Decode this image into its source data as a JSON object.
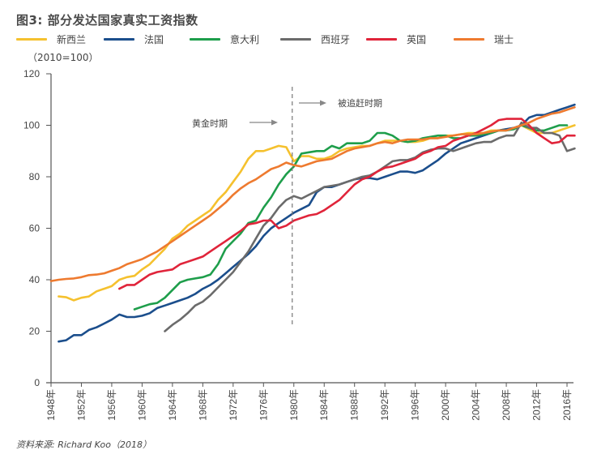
{
  "chart_data": {
    "type": "line",
    "title": "图3: 部分发达国家真实工资指数",
    "unit_label": "（2010=100）",
    "source": "资料来源: Richard Koo（2018）",
    "xlabel": "",
    "ylabel": "",
    "xlim": [
      1948,
      2017
    ],
    "ylim": [
      0,
      120
    ],
    "yticks": [
      0,
      20,
      40,
      60,
      80,
      100,
      120
    ],
    "ytick_labels": [
      "0",
      "20",
      "40",
      "60",
      "80",
      "100",
      "120"
    ],
    "xticks": [
      1948,
      1952,
      1956,
      1960,
      1964,
      1968,
      1972,
      1976,
      1980,
      1984,
      1988,
      1992,
      1996,
      2000,
      2004,
      2008,
      2012,
      2016
    ],
    "xtick_labels": [
      "1948年",
      "1952年",
      "1956年",
      "1960年",
      "1964年",
      "1968年",
      "1972年",
      "1976年",
      "1980年",
      "1984年",
      "1988年",
      "1992年",
      "1996年",
      "2000年",
      "2004年",
      "2008年",
      "2012年",
      "2016年"
    ],
    "grid": false,
    "legend_position": "top",
    "vline": {
      "x": 1980,
      "style": "dashed"
    },
    "annotations": [
      {
        "text": "黄金时期",
        "arrow": "right"
      },
      {
        "text": "被追赶时期",
        "arrow": "right"
      }
    ],
    "series": [
      {
        "name": "新西兰",
        "color": "#F5C12E",
        "x": [
          1949,
          1950,
          1951,
          1952,
          1953,
          1954,
          1955,
          1956,
          1957,
          1958,
          1959,
          1960,
          1961,
          1962,
          1963,
          1964,
          1965,
          1966,
          1967,
          1968,
          1969,
          1970,
          1971,
          1972,
          1973,
          1974,
          1975,
          1976,
          1977,
          1978,
          1979,
          1980,
          1981,
          1982,
          1983,
          1984,
          1985,
          1986,
          1987,
          1988,
          1989,
          1990,
          1991,
          1992,
          1993,
          1994,
          1995,
          1996,
          1997,
          1998,
          1999,
          2000,
          2001,
          2002,
          2003,
          2004,
          2005,
          2006,
          2007,
          2008,
          2009,
          2010,
          2011,
          2012,
          2013,
          2014,
          2015,
          2016,
          2017
        ],
        "y": [
          33.5,
          33.2,
          32,
          33,
          33.5,
          35.5,
          36.5,
          37.5,
          40,
          41,
          41.5,
          44,
          46,
          49,
          52,
          56,
          58,
          61,
          63,
          65,
          67,
          71,
          74,
          78,
          82,
          87,
          90,
          90,
          91,
          92,
          91.5,
          86,
          88,
          88,
          87,
          87,
          88,
          90,
          91,
          91.5,
          92,
          92,
          93,
          94,
          94,
          94,
          93.5,
          93.5,
          94,
          95,
          95,
          96,
          96,
          96.5,
          97,
          97,
          97,
          98,
          98,
          98.5,
          98.5,
          100,
          98.5,
          97,
          97,
          97,
          98,
          99,
          100
        ]
      },
      {
        "name": "法国",
        "color": "#1B4E8C",
        "x": [
          1949,
          1950,
          1951,
          1952,
          1953,
          1954,
          1955,
          1956,
          1957,
          1958,
          1959,
          1960,
          1961,
          1962,
          1963,
          1964,
          1965,
          1966,
          1967,
          1968,
          1969,
          1970,
          1971,
          1972,
          1973,
          1974,
          1975,
          1976,
          1977,
          1978,
          1979,
          1980,
          1981,
          1982,
          1983,
          1984,
          1985,
          1986,
          1987,
          1988,
          1989,
          1990,
          1991,
          1992,
          1993,
          1994,
          1995,
          1996,
          1997,
          1998,
          1999,
          2000,
          2001,
          2002,
          2003,
          2004,
          2005,
          2006,
          2007,
          2008,
          2009,
          2010,
          2011,
          2012,
          2013,
          2014,
          2015,
          2016,
          2017
        ],
        "y": [
          16,
          16.5,
          18.5,
          18.5,
          20.5,
          21.5,
          23,
          24.5,
          26.5,
          25.5,
          25.5,
          26,
          27,
          29,
          30,
          31,
          32,
          33,
          34.5,
          36.5,
          38,
          40,
          42.5,
          45,
          47.5,
          50,
          53,
          57,
          60,
          62,
          64,
          66,
          67.5,
          69,
          74,
          76,
          76,
          77,
          78,
          79,
          79.5,
          79.5,
          79,
          80,
          81,
          82,
          82,
          81.5,
          82.5,
          84.5,
          86.5,
          89,
          91,
          93,
          94,
          95,
          96,
          97,
          98,
          98.5,
          99,
          100,
          103,
          104,
          104,
          105,
          106,
          107,
          108
        ]
      },
      {
        "name": "意大利",
        "color": "#1E9E4B",
        "x": [
          1959,
          1960,
          1961,
          1962,
          1963,
          1964,
          1965,
          1966,
          1967,
          1968,
          1969,
          1970,
          1971,
          1972,
          1973,
          1974,
          1975,
          1976,
          1977,
          1978,
          1979,
          1980,
          1981,
          1982,
          1983,
          1984,
          1985,
          1986,
          1987,
          1988,
          1989,
          1990,
          1991,
          1992,
          1993,
          1994,
          1995,
          1996,
          1997,
          1998,
          1999,
          2000,
          2001,
          2002,
          2003,
          2004,
          2005,
          2006,
          2007,
          2008,
          2009,
          2010,
          2011,
          2012,
          2013,
          2014,
          2015,
          2016
        ],
        "y": [
          28.5,
          29.5,
          30.5,
          31,
          33,
          36,
          39,
          40,
          40.5,
          41,
          42,
          46,
          52,
          55,
          58,
          62,
          63,
          68,
          72,
          77,
          81,
          84,
          89,
          89.5,
          90,
          90,
          92,
          91,
          93,
          93,
          93,
          94,
          97,
          97,
          96,
          94,
          93.5,
          94,
          95,
          95.5,
          96,
          96,
          95,
          95,
          96,
          96,
          96.5,
          97,
          98,
          98,
          98.5,
          100,
          99,
          98,
          98,
          99,
          100,
          100
        ]
      },
      {
        "name": "西班牙",
        "color": "#6B6B6B",
        "x": [
          1963,
          1964,
          1965,
          1966,
          1967,
          1968,
          1969,
          1970,
          1971,
          1972,
          1973,
          1974,
          1975,
          1976,
          1977,
          1978,
          1979,
          1980,
          1981,
          1982,
          1983,
          1984,
          1985,
          1986,
          1987,
          1988,
          1989,
          1990,
          1991,
          1992,
          1993,
          1994,
          1995,
          1996,
          1997,
          1998,
          1999,
          2000,
          2001,
          2002,
          2003,
          2004,
          2005,
          2006,
          2007,
          2008,
          2009,
          2010,
          2011,
          2012,
          2013,
          2014,
          2015,
          2016,
          2017
        ],
        "y": [
          20,
          22.5,
          24.5,
          27,
          30,
          31.5,
          34,
          37,
          40,
          43,
          47,
          51,
          56,
          61,
          64,
          68,
          71,
          72.5,
          71.5,
          73,
          74.5,
          76,
          76.5,
          77,
          78,
          79,
          80,
          80.5,
          82,
          84,
          86,
          86.5,
          86.5,
          87.5,
          89.5,
          90.5,
          91,
          91,
          90,
          91,
          92,
          93,
          93.5,
          93.5,
          95,
          96,
          96,
          101,
          99,
          99,
          97,
          97,
          96,
          90,
          91
        ]
      },
      {
        "name": "英国",
        "color": "#E0243A",
        "x": [
          1957,
          1958,
          1959,
          1960,
          1961,
          1962,
          1963,
          1964,
          1965,
          1966,
          1967,
          1968,
          1969,
          1970,
          1971,
          1972,
          1973,
          1974,
          1975,
          1976,
          1977,
          1978,
          1979,
          1980,
          1981,
          1982,
          1983,
          1984,
          1985,
          1986,
          1987,
          1988,
          1989,
          1990,
          1991,
          1992,
          1993,
          1994,
          1995,
          1996,
          1997,
          1998,
          1999,
          2000,
          2001,
          2002,
          2003,
          2004,
          2005,
          2006,
          2007,
          2008,
          2009,
          2010,
          2011,
          2012,
          2013,
          2014,
          2015,
          2016,
          2017
        ],
        "y": [
          36.5,
          38,
          38,
          40,
          42,
          43,
          43.5,
          44,
          46,
          47,
          48,
          49,
          51,
          53,
          55,
          57,
          59,
          61.5,
          62,
          63,
          63,
          60,
          61,
          63,
          64,
          65,
          65.5,
          67,
          69,
          71,
          74,
          77,
          79,
          80,
          82,
          83.5,
          84,
          85,
          86,
          87,
          89,
          90,
          91.5,
          92,
          94,
          95,
          96,
          97,
          98.5,
          100,
          102,
          102.5,
          102.5,
          102.5,
          100,
          97,
          95,
          93,
          93.5,
          96,
          96
        ]
      },
      {
        "name": "瑞士",
        "color": "#EE7A2F",
        "x": [
          1948,
          1949,
          1950,
          1951,
          1952,
          1953,
          1954,
          1955,
          1956,
          1957,
          1958,
          1959,
          1960,
          1961,
          1962,
          1963,
          1964,
          1965,
          1966,
          1967,
          1968,
          1969,
          1970,
          1971,
          1972,
          1973,
          1974,
          1975,
          1976,
          1977,
          1978,
          1979,
          1980,
          1981,
          1982,
          1983,
          1984,
          1985,
          1986,
          1987,
          1988,
          1989,
          1990,
          1991,
          1992,
          1993,
          1994,
          1995,
          1996,
          1997,
          1998,
          1999,
          2000,
          2001,
          2002,
          2003,
          2004,
          2005,
          2006,
          2007,
          2008,
          2009,
          2010,
          2011,
          2012,
          2013,
          2014,
          2015,
          2016,
          2017
        ],
        "y": [
          39.5,
          40,
          40.3,
          40.5,
          41,
          41.8,
          42,
          42.5,
          43.5,
          44.5,
          46,
          47,
          48,
          49.5,
          51,
          53,
          55,
          57,
          59,
          61,
          63,
          65,
          67.5,
          70,
          73,
          75.5,
          77.5,
          79,
          81,
          83,
          84,
          85.5,
          84.5,
          84,
          85,
          86,
          86.5,
          87,
          88.5,
          90,
          91,
          91.5,
          92,
          93,
          93.5,
          93,
          94,
          94.5,
          94.5,
          94.5,
          95,
          95,
          95.5,
          96,
          96.5,
          96.5,
          96.5,
          97,
          97.5,
          98,
          98,
          99,
          100,
          101,
          102.5,
          103.5,
          104.5,
          105,
          106,
          107
        ]
      }
    ]
  }
}
